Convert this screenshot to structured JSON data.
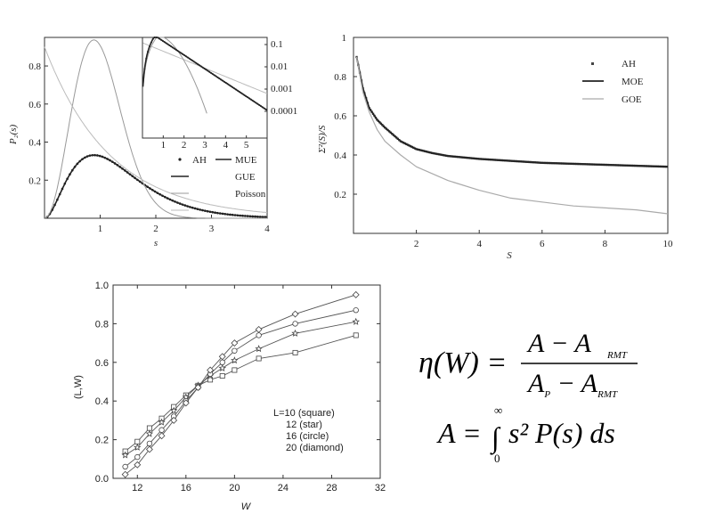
{
  "chart_data": [
    {
      "type": "line",
      "ylabel": "P₂(s)",
      "xlabel": "s",
      "xlim": [
        0,
        4
      ],
      "ylim": [
        0,
        0.95
      ],
      "xticks": [
        "1",
        "2",
        "3",
        "4"
      ],
      "yticks": [
        "0.2",
        "0.4",
        "0.6",
        "0.8"
      ],
      "legend": {
        "position": "bottom-right",
        "entries": [
          "AH",
          "MUE",
          "GUE",
          "Poisson"
        ]
      },
      "series": [
        {
          "name": "AH",
          "style": "dots",
          "curve": "mue"
        },
        {
          "name": "MUE",
          "style": "solid-dark",
          "curve": "mue"
        },
        {
          "name": "GUE",
          "style": "solid-gray",
          "curve": "gue"
        },
        {
          "name": "Poisson",
          "style": "solid-light",
          "curve": "poisson"
        }
      ],
      "inset": {
        "scale": "log",
        "xlim": [
          0,
          6
        ],
        "xticks": [
          "1",
          "2",
          "3",
          "4",
          "5"
        ],
        "yticks": [
          "0.1",
          "0.01",
          "0.001",
          "0.0001"
        ]
      }
    },
    {
      "type": "line",
      "ylabel": "Σ²(S)/S",
      "xlabel": "S",
      "xlim": [
        0,
        10
      ],
      "ylim": [
        0,
        1
      ],
      "xticks": [
        "2",
        "4",
        "6",
        "8",
        "10"
      ],
      "yticks": [
        "0.2",
        "0.4",
        "0.6",
        "0.8",
        "1"
      ],
      "legend": {
        "position": "top-right",
        "entries": [
          "AH",
          "MOE",
          "GOE"
        ]
      },
      "series": [
        {
          "name": "AH",
          "style": "dots",
          "x": [
            0.1,
            0.3,
            0.5,
            0.75,
            1,
            1.5,
            2,
            2.5,
            3,
            4,
            5,
            6,
            7,
            8,
            9,
            10
          ],
          "y": [
            0.9,
            0.74,
            0.64,
            0.58,
            0.54,
            0.47,
            0.43,
            0.41,
            0.395,
            0.38,
            0.37,
            0.36,
            0.355,
            0.35,
            0.345,
            0.34
          ]
        },
        {
          "name": "MOE",
          "style": "solid-dark",
          "x": [
            0.1,
            0.3,
            0.5,
            0.75,
            1,
            1.5,
            2,
            2.5,
            3,
            4,
            5,
            6,
            7,
            8,
            9,
            10
          ],
          "y": [
            0.9,
            0.74,
            0.64,
            0.58,
            0.54,
            0.47,
            0.43,
            0.41,
            0.395,
            0.38,
            0.37,
            0.36,
            0.355,
            0.35,
            0.345,
            0.34
          ]
        },
        {
          "name": "GOE",
          "style": "solid-gray",
          "x": [
            0.1,
            0.3,
            0.5,
            0.75,
            1,
            1.5,
            2,
            3,
            4,
            5,
            6,
            7,
            8,
            9,
            10
          ],
          "y": [
            0.9,
            0.72,
            0.62,
            0.53,
            0.47,
            0.4,
            0.34,
            0.27,
            0.22,
            0.18,
            0.16,
            0.14,
            0.13,
            0.12,
            0.1
          ]
        }
      ]
    },
    {
      "type": "line",
      "ylabel": "(L,W)",
      "xlabel": "W",
      "xlim": [
        10,
        32
      ],
      "ylim": [
        0,
        1.0
      ],
      "xticks": [
        "12",
        "16",
        "20",
        "24",
        "28",
        "32"
      ],
      "yticks": [
        "0.0",
        "0.2",
        "0.4",
        "0.6",
        "0.8",
        "1.0"
      ],
      "x": [
        11,
        12,
        13,
        14,
        15,
        16,
        17,
        18,
        19,
        20,
        22,
        25,
        30
      ],
      "legend_title": "L=10 (square)",
      "legend": {
        "position": "bottom-right"
      },
      "series": [
        {
          "name": "L=10 (square)",
          "marker": "square",
          "values": [
            0.14,
            0.19,
            0.26,
            0.31,
            0.37,
            0.43,
            0.48,
            0.51,
            0.53,
            0.56,
            0.62,
            0.65,
            0.74
          ]
        },
        {
          "name": "12 (star)",
          "marker": "star",
          "values": [
            0.12,
            0.16,
            0.23,
            0.29,
            0.35,
            0.42,
            0.48,
            0.53,
            0.57,
            0.61,
            0.67,
            0.75,
            0.81
          ]
        },
        {
          "name": "16 (circle)",
          "marker": "circle",
          "values": [
            0.06,
            0.11,
            0.18,
            0.25,
            0.32,
            0.4,
            0.47,
            0.54,
            0.6,
            0.66,
            0.74,
            0.8,
            0.87
          ]
        },
        {
          "name": "20 (diamond)",
          "marker": "diamond",
          "values": [
            0.02,
            0.07,
            0.15,
            0.22,
            0.3,
            0.39,
            0.47,
            0.56,
            0.63,
            0.7,
            0.77,
            0.85,
            0.95
          ]
        }
      ]
    }
  ],
  "equations": {
    "eta_lhs": "η(W) =",
    "numerator": "A − A",
    "numerator_sub": "RMT",
    "denominator": "A",
    "denominator_sub1": "P",
    "denominator_mid": " − A",
    "denominator_sub2": "RMT",
    "a_lhs": "A =",
    "integral": "∫",
    "upper": "∞",
    "lower": "0",
    "integrand": "s² P(s) ds"
  }
}
